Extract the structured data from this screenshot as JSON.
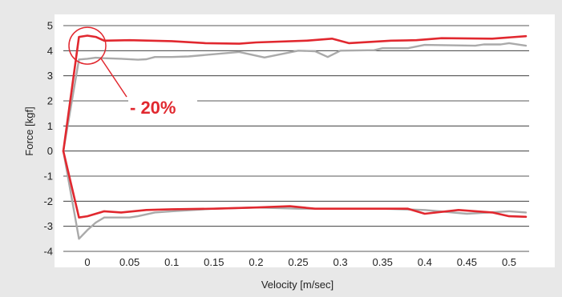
{
  "chart_data": {
    "type": "line",
    "title": "",
    "xlabel": "Velocity [m/sec]",
    "ylabel": "Force [kgf]",
    "xlim": [
      -0.03,
      0.525
    ],
    "ylim": [
      -4,
      5
    ],
    "x_ticks": [
      {
        "value": 0,
        "label": "0"
      },
      {
        "value": 0.05,
        "label": "0.05"
      },
      {
        "value": 0.1,
        "label": "0.1"
      },
      {
        "value": 0.15,
        "label": "0.15"
      },
      {
        "value": 0.2,
        "label": "0.2"
      },
      {
        "value": 0.25,
        "label": "0.25"
      },
      {
        "value": 0.3,
        "label": "0.3"
      },
      {
        "value": 0.35,
        "label": "0.35"
      },
      {
        "value": 0.4,
        "label": "0.4"
      },
      {
        "value": 0.45,
        "label": "0.45"
      },
      {
        "value": 0.5,
        "label": "0.5"
      }
    ],
    "y_ticks": [
      {
        "value": 5,
        "label": "5"
      },
      {
        "value": 4,
        "label": "4"
      },
      {
        "value": 3,
        "label": "3"
      },
      {
        "value": 2,
        "label": "2"
      },
      {
        "value": 1,
        "label": "1"
      },
      {
        "value": 0,
        "label": "0"
      },
      {
        "value": -1,
        "label": "-1"
      },
      {
        "value": -2,
        "label": "-2"
      },
      {
        "value": -3,
        "label": "-3"
      },
      {
        "value": -4,
        "label": "-4"
      }
    ],
    "grid": "horizontal",
    "colors": {
      "red": "#e1282f",
      "gray": "#aaaaaa",
      "grid": "#222222",
      "plot_background": "#ffffff",
      "page_background": "#e8e8e8"
    },
    "series": [
      {
        "color": "#aaaaaa",
        "points": [
          [
            -0.03,
            0
          ],
          [
            -0.01,
            3.65
          ],
          [
            0.0,
            3.68
          ],
          [
            0.01,
            3.72
          ],
          [
            0.02,
            3.7
          ],
          [
            0.04,
            3.68
          ],
          [
            0.06,
            3.64
          ],
          [
            0.07,
            3.66
          ],
          [
            0.08,
            3.75
          ],
          [
            0.1,
            3.75
          ],
          [
            0.12,
            3.77
          ],
          [
            0.18,
            3.95
          ],
          [
            0.21,
            3.73
          ],
          [
            0.25,
            4.0
          ],
          [
            0.27,
            3.98
          ],
          [
            0.285,
            3.75
          ],
          [
            0.3,
            4.0
          ],
          [
            0.34,
            4.02
          ],
          [
            0.35,
            4.1
          ],
          [
            0.38,
            4.1
          ],
          [
            0.4,
            4.23
          ],
          [
            0.46,
            4.2
          ],
          [
            0.47,
            4.25
          ],
          [
            0.49,
            4.25
          ],
          [
            0.5,
            4.3
          ],
          [
            0.52,
            4.2
          ]
        ]
      },
      {
        "color": "#e1282f",
        "points": [
          [
            -0.03,
            0
          ],
          [
            -0.01,
            4.55
          ],
          [
            0.0,
            4.6
          ],
          [
            0.01,
            4.55
          ],
          [
            0.02,
            4.4
          ],
          [
            0.05,
            4.42
          ],
          [
            0.1,
            4.38
          ],
          [
            0.14,
            4.3
          ],
          [
            0.18,
            4.28
          ],
          [
            0.2,
            4.33
          ],
          [
            0.26,
            4.4
          ],
          [
            0.29,
            4.48
          ],
          [
            0.31,
            4.3
          ],
          [
            0.36,
            4.4
          ],
          [
            0.39,
            4.42
          ],
          [
            0.42,
            4.5
          ],
          [
            0.48,
            4.48
          ],
          [
            0.52,
            4.58
          ]
        ]
      },
      {
        "color": "#aaaaaa",
        "points": [
          [
            -0.03,
            0
          ],
          [
            -0.01,
            -3.5
          ],
          [
            0.0,
            -3.15
          ],
          [
            0.01,
            -2.85
          ],
          [
            0.02,
            -2.65
          ],
          [
            0.05,
            -2.65
          ],
          [
            0.06,
            -2.6
          ],
          [
            0.08,
            -2.45
          ],
          [
            0.1,
            -2.4
          ],
          [
            0.15,
            -2.3
          ],
          [
            0.2,
            -2.25
          ],
          [
            0.25,
            -2.3
          ],
          [
            0.3,
            -2.3
          ],
          [
            0.35,
            -2.3
          ],
          [
            0.4,
            -2.35
          ],
          [
            0.45,
            -2.5
          ],
          [
            0.5,
            -2.4
          ],
          [
            0.52,
            -2.45
          ]
        ]
      },
      {
        "color": "#e1282f",
        "points": [
          [
            -0.03,
            0
          ],
          [
            -0.01,
            -2.65
          ],
          [
            0.0,
            -2.6
          ],
          [
            0.02,
            -2.4
          ],
          [
            0.04,
            -2.45
          ],
          [
            0.07,
            -2.35
          ],
          [
            0.1,
            -2.32
          ],
          [
            0.15,
            -2.3
          ],
          [
            0.2,
            -2.25
          ],
          [
            0.24,
            -2.2
          ],
          [
            0.27,
            -2.3
          ],
          [
            0.32,
            -2.3
          ],
          [
            0.38,
            -2.3
          ],
          [
            0.4,
            -2.5
          ],
          [
            0.44,
            -2.35
          ],
          [
            0.48,
            -2.45
          ],
          [
            0.5,
            -2.6
          ],
          [
            0.52,
            -2.62
          ]
        ]
      }
    ],
    "annotation": {
      "text": "- 20%",
      "target": [
        0.0,
        4.2
      ],
      "color": "#e1282f"
    }
  }
}
